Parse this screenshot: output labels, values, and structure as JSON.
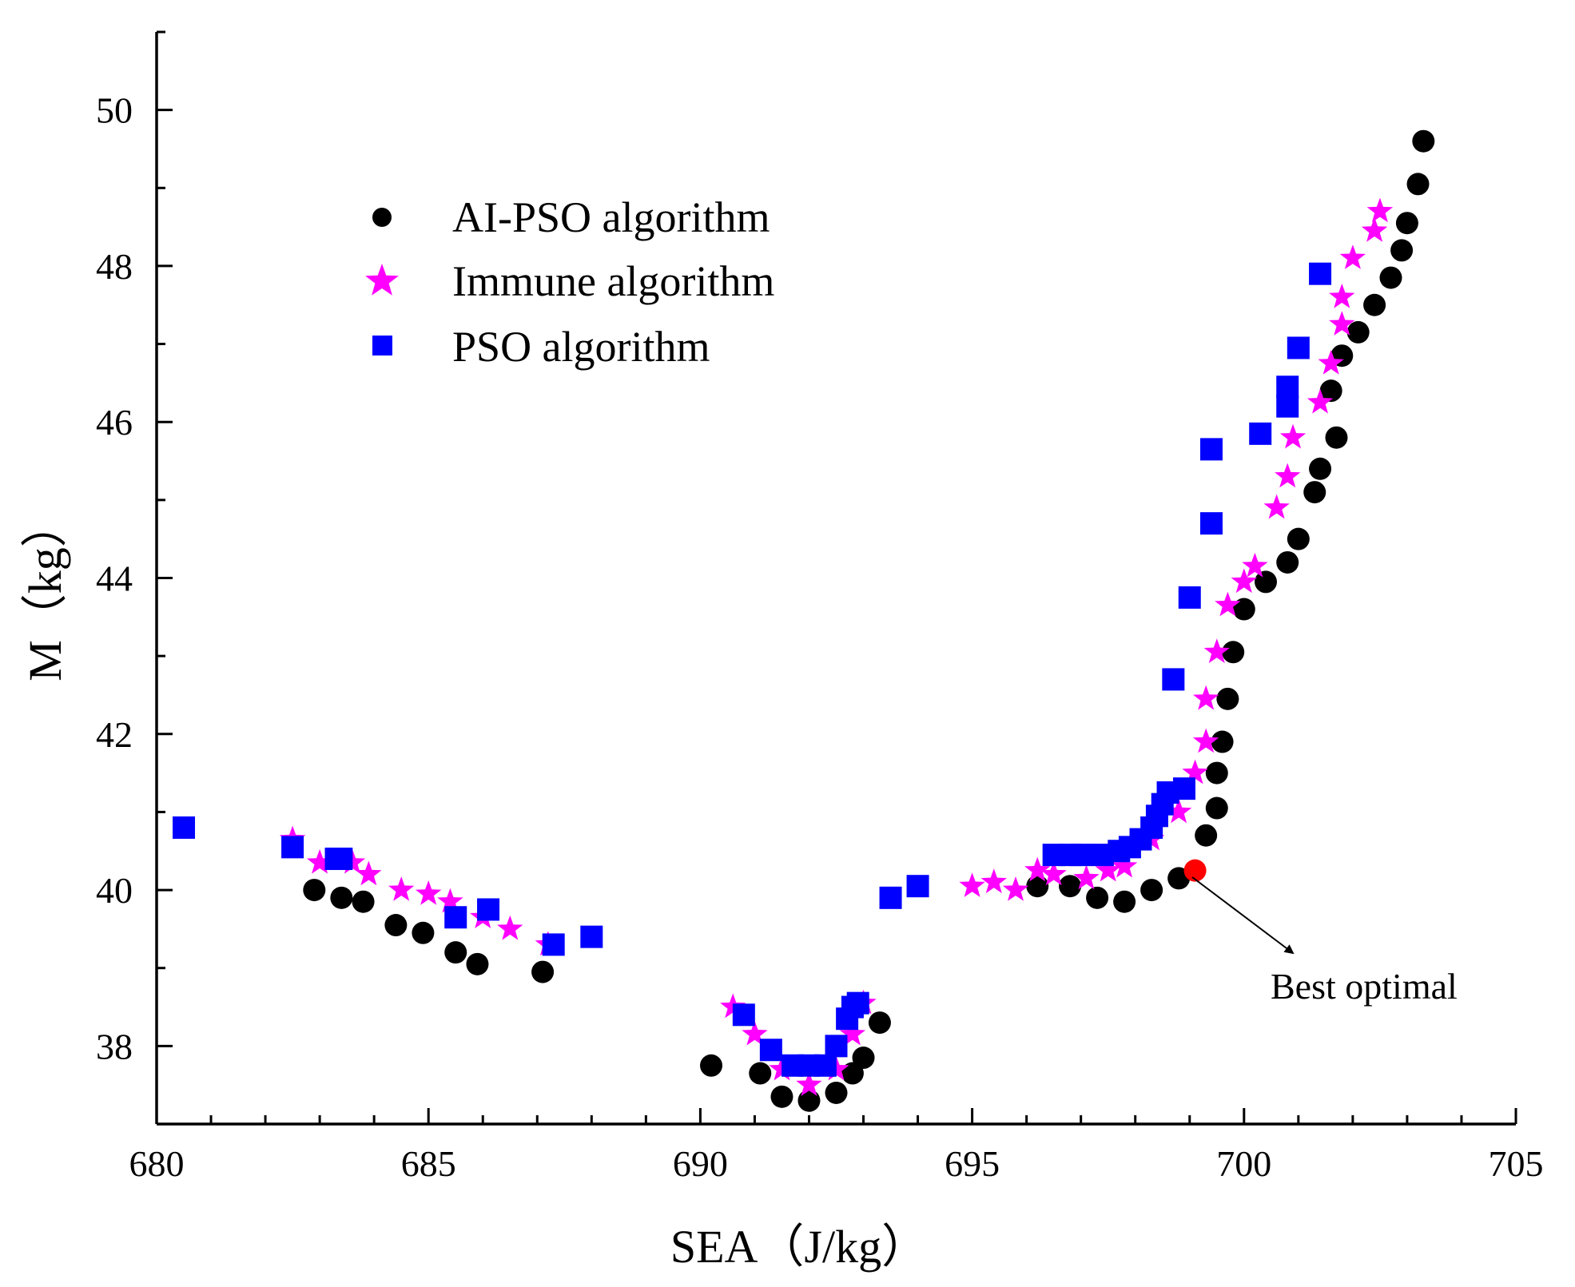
{
  "chart_data": {
    "type": "scatter",
    "title": "",
    "xlabel": "SEA（J/kg）",
    "ylabel": "M（kg）",
    "xlim": [
      680,
      705
    ],
    "ylim": [
      37,
      51
    ],
    "xticks": [
      680,
      685,
      690,
      695,
      700,
      705
    ],
    "yticks": [
      38,
      40,
      42,
      44,
      46,
      48,
      50
    ],
    "grid": false,
    "legend_position": "top-left",
    "series": [
      {
        "name": "AI-PSO algorithm",
        "marker": "circle",
        "color": "#000000",
        "points": [
          [
            682.9,
            40.0
          ],
          [
            683.4,
            39.9
          ],
          [
            683.8,
            39.85
          ],
          [
            684.4,
            39.55
          ],
          [
            684.9,
            39.45
          ],
          [
            685.5,
            39.2
          ],
          [
            685.9,
            39.05
          ],
          [
            687.1,
            38.95
          ],
          [
            690.2,
            37.75
          ],
          [
            691.1,
            37.65
          ],
          [
            691.5,
            37.35
          ],
          [
            692.0,
            37.3
          ],
          [
            692.5,
            37.4
          ],
          [
            692.8,
            37.65
          ],
          [
            693.0,
            37.85
          ],
          [
            693.3,
            38.3
          ],
          [
            696.2,
            40.05
          ],
          [
            696.8,
            40.05
          ],
          [
            697.3,
            39.9
          ],
          [
            697.8,
            39.85
          ],
          [
            698.3,
            40.0
          ],
          [
            698.8,
            40.15
          ],
          [
            699.3,
            40.7
          ],
          [
            699.5,
            41.05
          ],
          [
            699.5,
            41.5
          ],
          [
            699.6,
            41.9
          ],
          [
            699.7,
            42.45
          ],
          [
            699.8,
            43.05
          ],
          [
            700.0,
            43.6
          ],
          [
            700.4,
            43.95
          ],
          [
            700.8,
            44.2
          ],
          [
            701.0,
            44.5
          ],
          [
            701.3,
            45.1
          ],
          [
            701.4,
            45.4
          ],
          [
            701.7,
            45.8
          ],
          [
            701.6,
            46.4
          ],
          [
            701.8,
            46.85
          ],
          [
            702.1,
            47.15
          ],
          [
            702.4,
            47.5
          ],
          [
            702.7,
            47.85
          ],
          [
            702.9,
            48.2
          ],
          [
            703.0,
            48.55
          ],
          [
            703.2,
            49.05
          ],
          [
            703.3,
            49.6
          ]
        ]
      },
      {
        "name": "Immune algorithm",
        "marker": "star",
        "color": "#ff00ff",
        "points": [
          [
            682.5,
            40.65
          ],
          [
            683.0,
            40.35
          ],
          [
            683.6,
            40.35
          ],
          [
            683.9,
            40.2
          ],
          [
            684.5,
            40.0
          ],
          [
            685.0,
            39.95
          ],
          [
            685.4,
            39.85
          ],
          [
            686.0,
            39.65
          ],
          [
            686.5,
            39.5
          ],
          [
            687.2,
            39.3
          ],
          [
            690.6,
            38.5
          ],
          [
            691.0,
            38.15
          ],
          [
            691.5,
            37.7
          ],
          [
            692.0,
            37.5
          ],
          [
            692.5,
            37.7
          ],
          [
            692.8,
            38.15
          ],
          [
            693.0,
            38.55
          ],
          [
            695.0,
            40.05
          ],
          [
            695.4,
            40.1
          ],
          [
            695.8,
            40.0
          ],
          [
            696.2,
            40.25
          ],
          [
            696.5,
            40.2
          ],
          [
            697.1,
            40.15
          ],
          [
            697.5,
            40.25
          ],
          [
            697.8,
            40.3
          ],
          [
            698.3,
            40.65
          ],
          [
            698.8,
            41.0
          ],
          [
            699.1,
            41.5
          ],
          [
            699.3,
            41.9
          ],
          [
            699.3,
            42.45
          ],
          [
            699.5,
            43.05
          ],
          [
            699.7,
            43.65
          ],
          [
            700.0,
            43.95
          ],
          [
            700.2,
            44.15
          ],
          [
            700.6,
            44.9
          ],
          [
            700.8,
            45.3
          ],
          [
            700.9,
            45.8
          ],
          [
            701.4,
            46.25
          ],
          [
            701.6,
            46.75
          ],
          [
            701.8,
            47.25
          ],
          [
            701.8,
            47.6
          ],
          [
            702.0,
            48.1
          ],
          [
            702.4,
            48.45
          ],
          [
            702.5,
            48.7
          ]
        ]
      },
      {
        "name": "PSO algorithm",
        "marker": "square",
        "color": "#0000ff",
        "points": [
          [
            680.5,
            40.8
          ],
          [
            682.5,
            40.55
          ],
          [
            683.3,
            40.4
          ],
          [
            683.4,
            40.4
          ],
          [
            685.5,
            39.65
          ],
          [
            686.1,
            39.75
          ],
          [
            687.3,
            39.3
          ],
          [
            688.0,
            39.4
          ],
          [
            690.8,
            38.4
          ],
          [
            691.3,
            37.95
          ],
          [
            691.7,
            37.75
          ],
          [
            692.0,
            37.75
          ],
          [
            692.3,
            37.75
          ],
          [
            692.5,
            38.0
          ],
          [
            692.7,
            38.35
          ],
          [
            692.8,
            38.5
          ],
          [
            692.9,
            38.55
          ],
          [
            693.5,
            39.9
          ],
          [
            694.0,
            40.05
          ],
          [
            696.5,
            40.45
          ],
          [
            696.8,
            40.45
          ],
          [
            697.0,
            40.45
          ],
          [
            697.4,
            40.45
          ],
          [
            697.7,
            40.5
          ],
          [
            697.9,
            40.55
          ],
          [
            698.1,
            40.65
          ],
          [
            698.3,
            40.8
          ],
          [
            698.4,
            40.95
          ],
          [
            698.5,
            41.1
          ],
          [
            698.6,
            41.25
          ],
          [
            698.9,
            41.3
          ],
          [
            698.7,
            42.7
          ],
          [
            699.0,
            43.75
          ],
          [
            699.4,
            44.7
          ],
          [
            699.4,
            45.65
          ],
          [
            700.3,
            45.85
          ],
          [
            700.8,
            46.2
          ],
          [
            700.8,
            46.45
          ],
          [
            701.0,
            46.95
          ],
          [
            701.4,
            47.9
          ]
        ]
      }
    ],
    "highlight": {
      "label": "Best optimal",
      "point": [
        699.1,
        40.25
      ],
      "color": "#ff0000"
    }
  }
}
